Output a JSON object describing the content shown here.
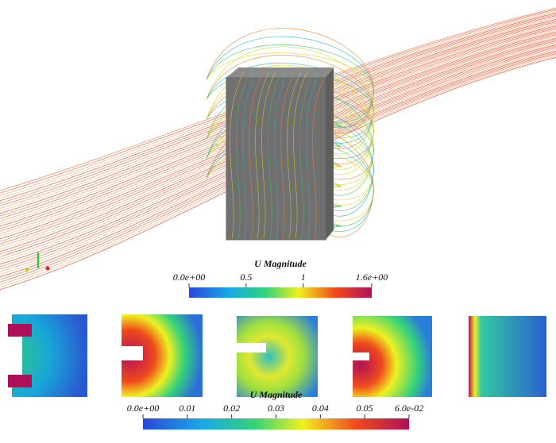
{
  "colorbars": [
    {
      "title": "U Magnitude",
      "lim": [
        0,
        1.6
      ],
      "ticks": [
        {
          "value": 0,
          "label": "0.0e+00"
        },
        0.5,
        1,
        {
          "value": 1.6,
          "label": "1.6e+00"
        }
      ]
    },
    {
      "title": "U Magnitude",
      "lim": [
        0,
        0.06
      ],
      "ticks": [
        {
          "value": 0,
          "label": "0.0e+00"
        },
        0.01,
        0.02,
        0.03,
        0.04,
        0.05,
        {
          "value": 0.06,
          "label": "6.0e-02"
        }
      ]
    }
  ]
}
